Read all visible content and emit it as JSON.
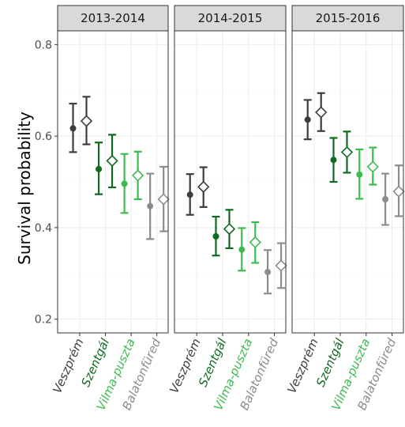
{
  "chart_data": {
    "type": "scatter",
    "subtype": "point-range with error bars, faceted",
    "ylabel": "Survival probability",
    "ylim": [
      0.17,
      0.83
    ],
    "yticks": [
      0.2,
      0.4,
      0.6,
      0.8
    ],
    "grid": true,
    "categories": [
      "Veszprém",
      "Szentgál",
      "Vilma-puszta",
      "Balatonfüred"
    ],
    "category_colors": [
      "#3d3d3d",
      "#0f6b1f",
      "#3dbb4f",
      "#8c8c8c"
    ],
    "marker_styles": [
      "filled-circle",
      "open-diamond"
    ],
    "facets": [
      {
        "label": "2013-2014",
        "series": [
          {
            "marker": "filled-circle",
            "values": [
              0.617,
              0.528,
              0.496,
              0.447
            ],
            "lower": [
              0.565,
              0.473,
              0.432,
              0.375
            ],
            "upper": [
              0.671,
              0.586,
              0.561,
              0.518
            ]
          },
          {
            "marker": "open-diamond",
            "values": [
              0.633,
              0.546,
              0.514,
              0.462
            ],
            "lower": [
              0.582,
              0.488,
              0.462,
              0.392
            ],
            "upper": [
              0.686,
              0.603,
              0.566,
              0.533
            ]
          }
        ]
      },
      {
        "label": "2014-2015",
        "series": [
          {
            "marker": "filled-circle",
            "values": [
              0.472,
              0.381,
              0.352,
              0.303
            ],
            "lower": [
              0.428,
              0.339,
              0.306,
              0.256
            ],
            "upper": [
              0.517,
              0.424,
              0.399,
              0.351
            ]
          },
          {
            "marker": "open-diamond",
            "values": [
              0.489,
              0.397,
              0.368,
              0.317
            ],
            "lower": [
              0.445,
              0.355,
              0.323,
              0.268
            ],
            "upper": [
              0.532,
              0.439,
              0.412,
              0.366
            ]
          }
        ]
      },
      {
        "label": "2015-2016",
        "series": [
          {
            "marker": "filled-circle",
            "values": [
              0.636,
              0.548,
              0.516,
              0.462
            ],
            "lower": [
              0.593,
              0.5,
              0.463,
              0.406
            ],
            "upper": [
              0.679,
              0.596,
              0.571,
              0.518
            ]
          },
          {
            "marker": "open-diamond",
            "values": [
              0.652,
              0.565,
              0.533,
              0.479
            ],
            "lower": [
              0.611,
              0.52,
              0.494,
              0.425
            ],
            "upper": [
              0.694,
              0.61,
              0.575,
              0.536
            ]
          }
        ]
      }
    ]
  }
}
